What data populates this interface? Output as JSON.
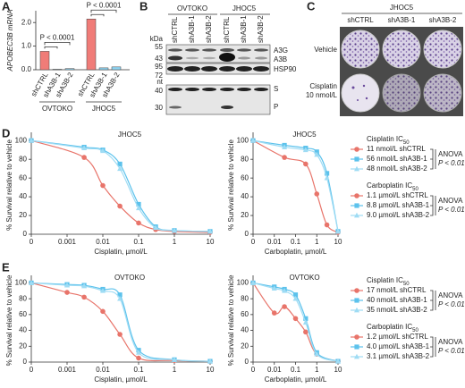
{
  "panel_labels": [
    "A",
    "B",
    "C",
    "D",
    "E"
  ],
  "blot": {
    "groups": [
      "OVTOKO",
      "JHOC5"
    ],
    "lanes": [
      "shCTRL",
      "shA3B-1",
      "shA3B-2",
      "shCTRL",
      "shA3B-1",
      "shA3B-2"
    ],
    "kda_label": "kDa",
    "kda_marks": [
      "55",
      "43",
      "95",
      "72"
    ],
    "nt_label": "nt",
    "nt_marks": [
      "40",
      "30"
    ],
    "bands": [
      "A3G",
      "A3B",
      "HSP90",
      "S",
      "P"
    ]
  },
  "colonies": {
    "title": "JHOC5",
    "columns": [
      "shCTRL",
      "shA3B-1",
      "shA3B-2"
    ],
    "rows": [
      [
        "Vehicle"
      ],
      [
        "Cisplatin",
        "10 nmol/L"
      ]
    ]
  },
  "chart_data": [
    {
      "type": "bar",
      "ylabel": "APOBEC3B mRNA",
      "categories": [
        "shCTRL",
        "shA3B-1",
        "shA3B-2",
        "shCTRL",
        "shA3B-1",
        "shA3B-2"
      ],
      "values": [
        0.78,
        0.02,
        0.05,
        2.15,
        0.08,
        0.12
      ],
      "colors": [
        "#f07c78",
        "#8fd4f2",
        "#8fd4f2",
        "#f07c78",
        "#8fd4f2",
        "#8fd4f2"
      ],
      "groups": [
        "OVTOKO",
        "JHOC5"
      ],
      "annotations": [
        "P < 0.0001",
        "P < 0.0001"
      ],
      "ylim": [
        0,
        2.5
      ],
      "yticks": [
        {
          "value": 0,
          "label": "0.0"
        },
        {
          "value": 1,
          "label": "1.0"
        },
        {
          "value": 2,
          "label": "2.0"
        }
      ]
    },
    {
      "type": "scatter",
      "title": "JHOC5",
      "xlabel": "Cisplatin, µmol/L",
      "ylabel": "% Survival relative to vehicle",
      "xscale": "log",
      "x": [
        0,
        0.003,
        0.01,
        0.03,
        0.1,
        0.3,
        1,
        10
      ],
      "xlim": [
        0,
        10
      ],
      "xticks": [
        0,
        0.001,
        0.01,
        0.1,
        1,
        10
      ],
      "ylim": [
        0,
        105
      ],
      "yticks": [
        0,
        20,
        40,
        60,
        80,
        100
      ],
      "fit_lines": true,
      "legend_title": "Cisplatin IC50",
      "legend_note": [
        "ANOVA",
        "P < 0.01"
      ],
      "series": [
        {
          "name": "11 nmol/L shCTRL",
          "color": "#e8746a",
          "marker": "circle",
          "values": [
            100,
            82,
            52,
            30,
            12,
            5,
            3,
            2
          ]
        },
        {
          "name": "56 nmol/L shA3B-1",
          "color": "#5cc2ec",
          "marker": "square",
          "values": [
            100,
            93,
            90,
            75,
            32,
            8,
            4,
            3
          ]
        },
        {
          "name": "48 nmol/L shA3B-2",
          "color": "#9fdcf4",
          "marker": "triangle",
          "values": [
            100,
            92,
            89,
            70,
            28,
            7,
            4,
            3
          ]
        }
      ]
    },
    {
      "type": "scatter",
      "title": "JHOC5",
      "xlabel": "Carboplatin, µmol/L",
      "ylabel": "% Survival relative to vehicle",
      "xscale": "log",
      "x": [
        0,
        0.03,
        0.3,
        1,
        3,
        10
      ],
      "xlim": [
        0,
        10
      ],
      "xticks": [
        0,
        0.01,
        0.1,
        1,
        10
      ],
      "ylim": [
        0,
        105
      ],
      "yticks": [
        0,
        20,
        40,
        60,
        80,
        100
      ],
      "fit_lines": true,
      "legend_title": "Carboplatin IC50",
      "legend_note": [
        "ANOVA",
        "P < 0.01"
      ],
      "series": [
        {
          "name": "1.1 µmol/L shCTRL",
          "color": "#e8746a",
          "marker": "circle",
          "values": [
            100,
            82,
            75,
            43,
            10,
            2
          ]
        },
        {
          "name": "8.8 µmol/L shA3B-1",
          "color": "#5cc2ec",
          "marker": "square",
          "values": [
            100,
            95,
            92,
            88,
            65,
            3
          ]
        },
        {
          "name": "9.0 µmol/L shA3B-2",
          "color": "#9fdcf4",
          "marker": "triangle",
          "values": [
            100,
            93,
            90,
            85,
            60,
            3
          ]
        }
      ]
    },
    {
      "type": "scatter",
      "title": "OVTOKO",
      "xlabel": "Cisplatin, µmol/L",
      "ylabel": "% Survival relative to vehicle",
      "xscale": "log",
      "x": [
        0,
        0.001,
        0.003,
        0.01,
        0.03,
        0.1,
        1,
        10
      ],
      "xlim": [
        0,
        10
      ],
      "xticks": [
        0,
        0.001,
        0.01,
        0.1,
        1,
        10
      ],
      "ylim": [
        0,
        105
      ],
      "yticks": [
        0,
        20,
        40,
        60,
        80,
        100
      ],
      "fit_lines": true,
      "legend_title": "Cisplatin IC50",
      "legend_note": [
        "ANOVA",
        "P < 0.01"
      ],
      "series": [
        {
          "name": "17 nmol/L shCTRL",
          "color": "#e8746a",
          "marker": "circle",
          "values": [
            100,
            88,
            82,
            64,
            35,
            5,
            2,
            1
          ]
        },
        {
          "name": "40 nmol/L shA3B-1",
          "color": "#5cc2ec",
          "marker": "square",
          "values": [
            100,
            98,
            97,
            92,
            85,
            15,
            3,
            1
          ]
        },
        {
          "name": "35 nmol/L shA3B-2",
          "color": "#9fdcf4",
          "marker": "triangle",
          "values": [
            100,
            97,
            96,
            90,
            80,
            12,
            3,
            1
          ]
        }
      ]
    },
    {
      "type": "scatter",
      "title": "OVTOKO",
      "xlabel": "Carboplatin, µmol/L",
      "ylabel": "% Survival relative to vehicle",
      "xscale": "log",
      "x": [
        0,
        0.01,
        0.03,
        0.1,
        0.3,
        1,
        10
      ],
      "xlim": [
        0,
        10
      ],
      "xticks": [
        0,
        0.01,
        0.1,
        1,
        10
      ],
      "ylim": [
        0,
        105
      ],
      "yticks": [
        0,
        20,
        40,
        60,
        80,
        100
      ],
      "fit_lines": true,
      "legend_title": "Carboplatin IC50",
      "legend_note": [
        "ANOVA",
        "P < 0.01"
      ],
      "series": [
        {
          "name": "1.2 µmol/L shCTRL",
          "color": "#e8746a",
          "marker": "circle",
          "values": [
            100,
            62,
            70,
            55,
            38,
            10,
            1
          ]
        },
        {
          "name": "4.0 µmol/L shA3B-1",
          "color": "#5cc2ec",
          "marker": "square",
          "values": [
            100,
            95,
            92,
            85,
            55,
            12,
            1
          ]
        },
        {
          "name": "3.1 µmol/L shA3B-2",
          "color": "#9fdcf4",
          "marker": "triangle",
          "values": [
            100,
            93,
            90,
            80,
            50,
            10,
            1
          ]
        }
      ]
    }
  ]
}
